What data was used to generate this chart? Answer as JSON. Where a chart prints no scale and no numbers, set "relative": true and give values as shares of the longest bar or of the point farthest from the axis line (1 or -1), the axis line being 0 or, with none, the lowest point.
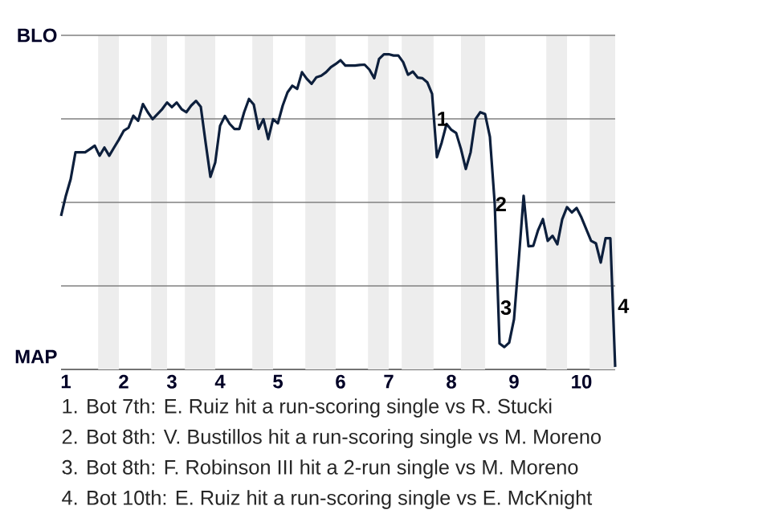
{
  "chart_data": {
    "type": "line",
    "relative": true,
    "categories": [
      null,
      "1",
      null,
      null,
      null,
      null,
      null,
      null,
      null,
      null,
      null,
      null,
      null,
      "2",
      null,
      null,
      null,
      null,
      null,
      null,
      null,
      null,
      null,
      "3",
      null,
      null,
      null,
      null,
      null,
      null,
      null,
      null,
      null,
      "4",
      null,
      null,
      null,
      null,
      null,
      null,
      null,
      null,
      null,
      null,
      null,
      "5",
      null,
      null,
      null,
      null,
      null,
      null,
      null,
      null,
      null,
      null,
      null,
      null,
      "6",
      null,
      null,
      null,
      null,
      null,
      null,
      null,
      null,
      null,
      "7",
      null,
      null,
      null,
      null,
      null,
      null,
      null,
      null,
      null,
      null,
      null,
      null,
      "8",
      null,
      null,
      null,
      null,
      null,
      null,
      null,
      null,
      null,
      null,
      null,
      null,
      "9",
      null,
      null,
      null,
      null,
      null,
      null,
      null,
      null,
      null,
      null,
      null,
      null,
      null,
      "10",
      null,
      null,
      null,
      null,
      null,
      null,
      null
    ],
    "grid": "y",
    "series": [
      {
        "color": "#0d1f3c",
        "values": [
          0.487,
          0.551,
          0.604,
          0.689,
          0.689,
          0.689,
          0.699,
          0.71,
          0.678,
          0.704,
          0.678,
          0.704,
          0.729,
          0.757,
          0.767,
          0.805,
          0.789,
          0.842,
          0.816,
          0.794,
          0.81,
          0.826,
          0.847,
          0.832,
          0.847,
          0.826,
          0.816,
          0.837,
          0.852,
          0.833,
          0.72,
          0.611,
          0.657,
          0.773,
          0.804,
          0.779,
          0.763,
          0.763,
          0.816,
          0.858,
          0.84,
          0.763,
          0.794,
          0.731,
          0.794,
          0.781,
          0.837,
          0.879,
          0.9,
          0.89,
          0.943,
          0.922,
          0.906,
          0.927,
          0.932,
          0.943,
          0.959,
          0.969,
          0.981,
          0.964,
          0.964,
          0.964,
          0.966,
          0.967,
          0.951,
          0.924,
          0.985,
          1,
          1,
          0.996,
          0.996,
          0.975,
          0.935,
          0.945,
          0.926,
          0.924,
          0.911,
          0.874,
          0.673,
          0.72,
          0.779,
          0.76,
          0.75,
          0.699,
          0.636,
          0.689,
          0.794,
          0.816,
          0.81,
          0.738,
          0.526,
          0.082,
          0.071,
          0.085,
          0.159,
          0.35,
          0.551,
          0.391,
          0.392,
          0.442,
          0.477,
          0.408,
          0.424,
          0.397,
          0.476,
          0.515,
          0.498,
          0.512,
          0.482,
          0.445,
          0.408,
          0.4,
          0.339,
          0.416,
          0.416,
          0.008
        ]
      }
    ],
    "annotations": [
      "BLO",
      "MAP",
      "1",
      "2",
      "3",
      "4",
      "1. Bot 7th: E. Ruiz hit a run-scoring single vs R. Stucki",
      "2. Bot 8th: V. Bustillos hit a run-scoring single vs M. Moreno",
      "3. Bot 8th: F. Robinson III hit a 2-run single vs M. Moreno",
      "4. Bot 10th: E. Ruiz hit a run-scoring single vs E. McKnight"
    ]
  }
}
